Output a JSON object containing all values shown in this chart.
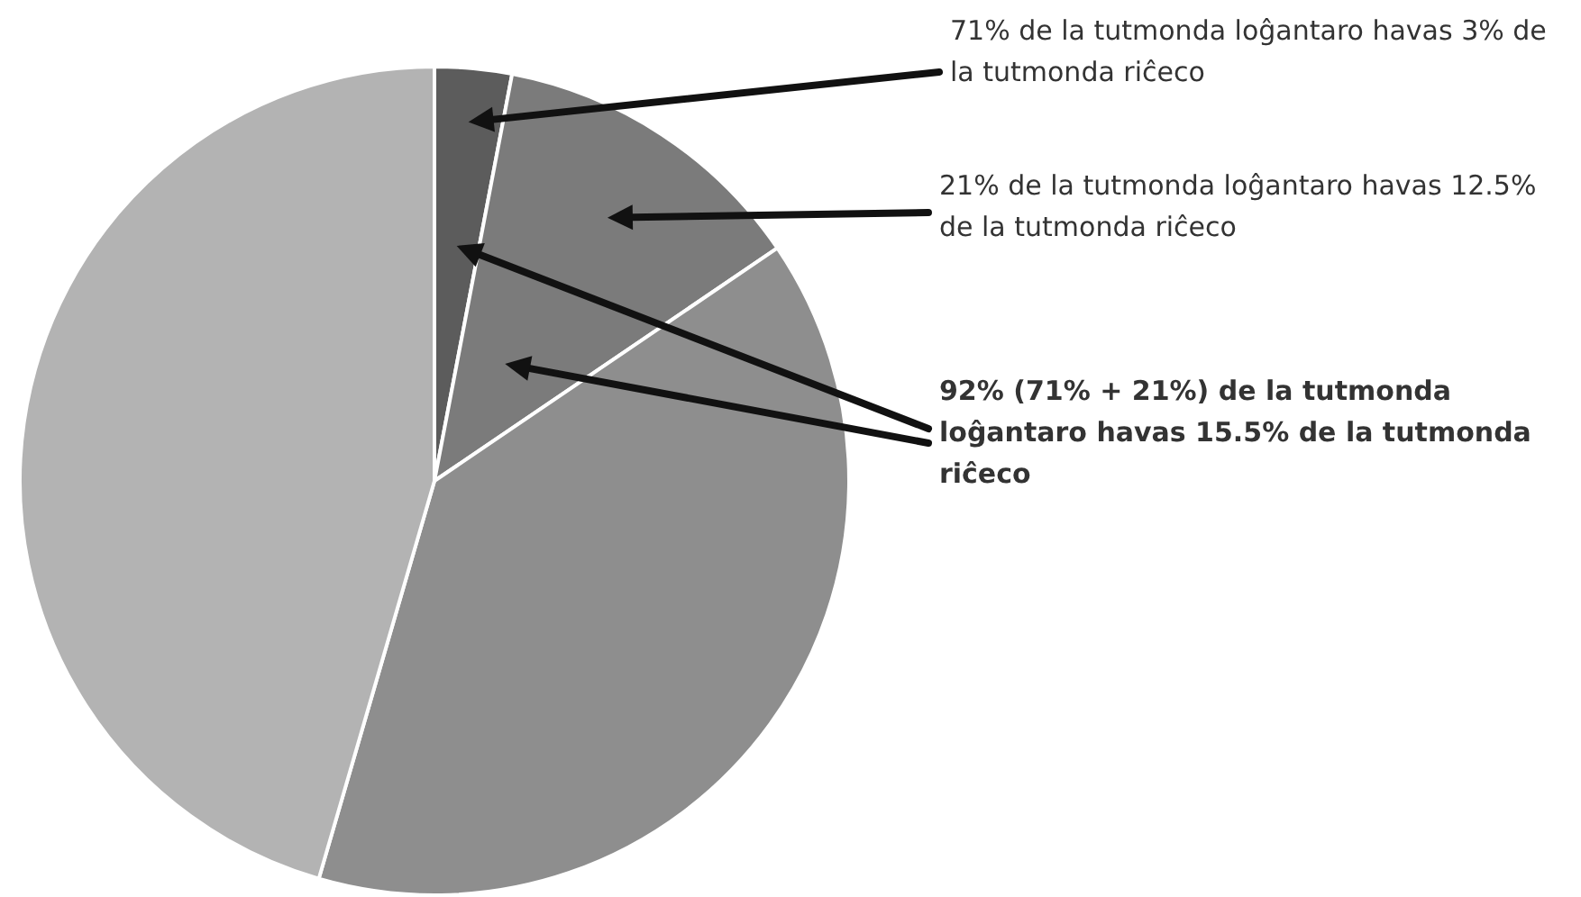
{
  "chart_data": {
    "type": "pie",
    "categories": [
      null,
      null,
      null,
      null
    ],
    "values": [
      3,
      12.5,
      39,
      45.5
    ],
    "colors": [
      "#5c5c5c",
      "#7b7b7b",
      "#8e8e8e",
      "#b3b3b3"
    ],
    "annotations": [
      "71% de la tutmonda loĝantaro havas 3% de la tutmonda riĉeco",
      "21% de la tutmonda loĝantaro havas 12.5% de la tutmonda riĉeco",
      "92% (71% + 21%) de la tutmonda loĝantaro havas 15.5% de la tutmonda riĉeco"
    ]
  }
}
